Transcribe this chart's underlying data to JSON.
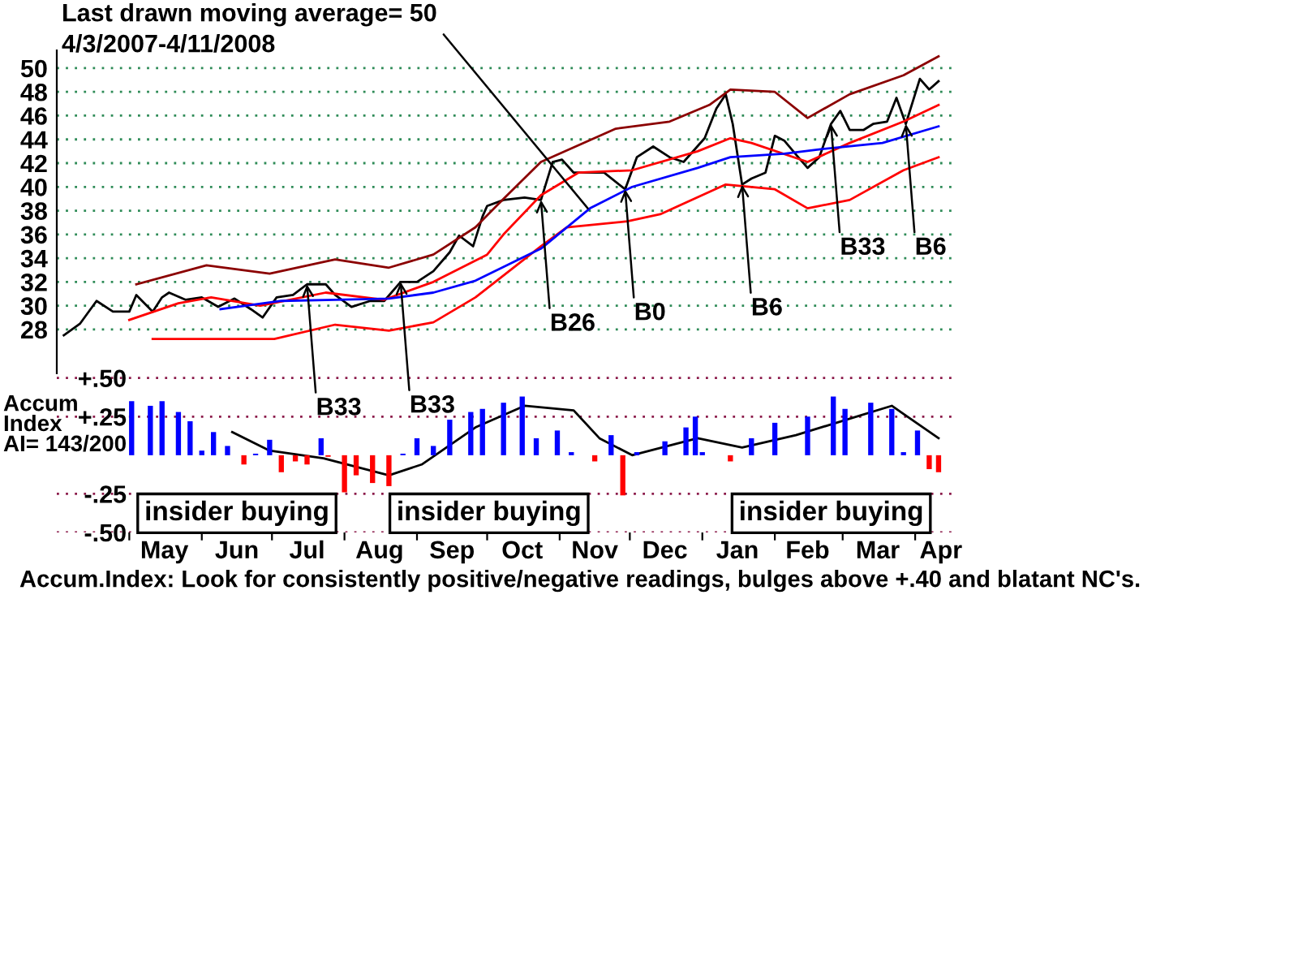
{
  "chart_data": [
    {
      "type": "line",
      "subtitle": "4/3/2007-4/11/2008",
      "xlim": [
        "2007-03-31",
        "2008-04-19"
      ],
      "ylim": [
        24.3,
        51.5
      ],
      "yticks": [
        28,
        30,
        32,
        34,
        36,
        38,
        40,
        42,
        44,
        46,
        48,
        50
      ],
      "grid": "y",
      "tick_labels": "y",
      "series": [
        {
          "color": "#000000",
          "x": [
            "2007-04-03",
            "2007-04-10",
            "2007-04-17",
            "2007-04-24",
            "2007-05-01",
            "2007-05-04",
            "2007-05-11",
            "2007-05-15",
            "2007-05-18",
            "2007-05-25",
            "2007-06-01",
            "2007-06-08",
            "2007-06-15",
            "2007-06-22",
            "2007-06-27",
            "2007-07-03",
            "2007-07-10",
            "2007-07-16",
            "2007-07-24",
            "2007-07-28",
            "2007-08-04",
            "2007-08-12",
            "2007-08-18",
            "2007-08-25",
            "2007-09-01",
            "2007-09-08",
            "2007-09-15",
            "2007-09-19",
            "2007-09-25",
            "2007-09-29",
            "2007-10-01",
            "2007-10-08",
            "2007-10-17",
            "2007-10-24",
            "2007-10-29",
            "2007-11-02",
            "2007-11-07",
            "2007-11-14",
            "2007-11-20",
            "2007-11-29",
            "2007-12-04",
            "2007-12-11",
            "2007-12-18",
            "2007-12-24",
            "2008-01-02",
            "2008-01-07",
            "2008-01-11",
            "2008-01-14",
            "2008-01-18",
            "2008-01-22",
            "2008-01-28",
            "2008-02-01",
            "2008-02-05",
            "2008-02-11",
            "2008-02-15",
            "2008-02-20",
            "2008-02-25",
            "2008-02-29",
            "2008-03-04",
            "2008-03-10",
            "2008-03-14",
            "2008-03-20",
            "2008-03-24",
            "2008-03-28",
            "2008-04-03",
            "2008-04-07",
            "2008-04-11"
          ],
          "values": [
            27.5,
            28.5,
            30.4,
            29.5,
            29.5,
            30.9,
            29.5,
            30.7,
            31.1,
            30.5,
            30.7,
            29.9,
            30.6,
            29.7,
            29.0,
            30.7,
            30.9,
            31.8,
            31.8,
            30.9,
            29.9,
            30.4,
            30.4,
            32.0,
            32.0,
            32.9,
            34.5,
            35.9,
            35.0,
            37.5,
            38.4,
            38.9,
            39.1,
            38.9,
            42.1,
            42.3,
            41.2,
            41.2,
            41.2,
            39.8,
            42.5,
            43.4,
            42.5,
            42.1,
            44.1,
            46.6,
            47.8,
            45.3,
            40.2,
            40.7,
            41.2,
            44.3,
            43.9,
            42.5,
            41.6,
            42.5,
            45.3,
            46.4,
            44.8,
            44.8,
            45.3,
            45.5,
            47.5,
            45.3,
            49.1,
            48.2,
            48.9
          ]
        },
        {
          "color": "#8b0000",
          "x": [
            "2007-05-04",
            "2007-06-03",
            "2007-06-30",
            "2007-07-28",
            "2007-08-20",
            "2007-09-08",
            "2007-09-26",
            "2007-10-08",
            "2007-10-24",
            "2007-11-25",
            "2007-12-18",
            "2008-01-04",
            "2008-01-13",
            "2008-02-01",
            "2008-02-15",
            "2008-03-04",
            "2008-03-27",
            "2008-04-11"
          ],
          "values": [
            31.8,
            33.4,
            32.7,
            33.9,
            33.2,
            34.3,
            36.6,
            39.0,
            42.1,
            44.9,
            45.5,
            46.9,
            48.2,
            48.0,
            45.8,
            47.8,
            49.4,
            51.0
          ]
        },
        {
          "color": "#ff0000",
          "x": [
            "2007-05-11",
            "2007-07-02",
            "2007-07-28",
            "2007-08-20",
            "2007-09-08",
            "2007-09-26",
            "2007-10-24",
            "2007-11-04",
            "2007-11-30",
            "2007-12-14",
            "2008-01-11",
            "2008-02-01",
            "2008-02-15",
            "2008-03-04",
            "2008-03-27",
            "2008-04-11"
          ],
          "values": [
            27.2,
            27.2,
            28.4,
            27.9,
            28.6,
            30.7,
            35.0,
            36.6,
            37.1,
            37.7,
            40.2,
            39.8,
            38.2,
            38.9,
            41.4,
            42.5
          ]
        },
        {
          "color": "#ff0000",
          "x": [
            "2007-05-01",
            "2007-05-22",
            "2007-06-05",
            "2007-06-26",
            "2007-07-24",
            "2007-08-18",
            "2007-09-08",
            "2007-10-01",
            "2007-10-08",
            "2007-10-24",
            "2007-11-09",
            "2007-12-02",
            "2007-12-30",
            "2008-01-13",
            "2008-01-22",
            "2008-02-15",
            "2008-03-04",
            "2008-03-27",
            "2008-04-11"
          ],
          "values": [
            28.8,
            30.2,
            30.7,
            30.0,
            31.1,
            30.5,
            32.0,
            34.3,
            36.0,
            39.3,
            41.2,
            41.4,
            43.0,
            44.1,
            43.7,
            42.1,
            43.7,
            45.5,
            46.9
          ]
        },
        {
          "color": "#0000ff",
          "x": [
            "2007-06-09",
            "2007-07-05",
            "2007-07-28",
            "2007-08-20",
            "2007-09-08",
            "2007-09-26",
            "2007-10-24",
            "2007-11-14",
            "2007-12-02",
            "2007-12-30",
            "2008-01-13",
            "2008-02-05",
            "2008-02-22",
            "2008-03-18",
            "2008-04-11"
          ],
          "values": [
            29.7,
            30.4,
            30.5,
            30.6,
            31.1,
            32.1,
            34.8,
            38.2,
            40.0,
            41.6,
            42.5,
            42.8,
            43.2,
            43.7,
            45.1
          ]
        }
      ],
      "annotations": [
        {
          "text": "Last drawn moving average= 50",
          "x": "2007-11-13",
          "y": 38.2
        },
        {
          "text": "B33",
          "x": "2007-07-16",
          "y": 31.8
        },
        {
          "text": "B33",
          "x": "2007-08-25",
          "y": 32.0
        },
        {
          "text": "B26",
          "x": "2007-10-24",
          "y": 38.9
        },
        {
          "text": "B0",
          "x": "2007-11-29",
          "y": 39.8
        },
        {
          "text": "B6",
          "x": "2008-01-18",
          "y": 40.2
        },
        {
          "text": "B33",
          "x": "2008-02-25",
          "y": 45.3
        },
        {
          "text": "B6",
          "x": "2008-03-28",
          "y": 45.3
        }
      ]
    },
    {
      "type": "bar",
      "ylabel": "Accum\nIndex\nAI= 143/200",
      "xlim": [
        "2007-03-31",
        "2008-04-19"
      ],
      "ylim": [
        -0.5,
        0.53
      ],
      "xticks": [
        {
          "value": "2007-05-01",
          "label": null
        },
        {
          "value": "2007-05-16",
          "label": "May"
        },
        {
          "value": "2007-06-01",
          "label": null
        },
        {
          "value": "2007-06-16",
          "label": "Jun"
        },
        {
          "value": "2007-07-01",
          "label": null
        },
        {
          "value": "2007-07-16",
          "label": "Jul"
        },
        {
          "value": "2007-08-01",
          "label": null
        },
        {
          "value": "2007-08-16",
          "label": "Aug"
        },
        {
          "value": "2007-09-01",
          "label": null
        },
        {
          "value": "2007-09-16",
          "label": "Sep"
        },
        {
          "value": "2007-10-01",
          "label": null
        },
        {
          "value": "2007-10-16",
          "label": "Oct"
        },
        {
          "value": "2007-11-01",
          "label": null
        },
        {
          "value": "2007-11-16",
          "label": "Nov"
        },
        {
          "value": "2007-12-01",
          "label": null
        },
        {
          "value": "2007-12-16",
          "label": "Dec"
        },
        {
          "value": "2008-01-01",
          "label": null
        },
        {
          "value": "2008-01-16",
          "label": "Jan"
        },
        {
          "value": "2008-02-01",
          "label": null
        },
        {
          "value": "2008-02-15",
          "label": "Feb"
        },
        {
          "value": "2008-03-01",
          "label": null
        },
        {
          "value": "2008-03-16",
          "label": "Mar"
        },
        {
          "value": "2008-04-01",
          "label": null
        },
        {
          "value": "2008-04-12",
          "label": "Apr"
        }
      ],
      "yticks": [
        {
          "value": 0.5,
          "label": "+.50"
        },
        {
          "value": 0.25,
          "label": "+.25"
        },
        {
          "value": -0.25,
          "label": "-.25"
        },
        {
          "value": -0.5,
          "label": "-.50"
        }
      ],
      "grid": "y",
      "series": [
        {
          "type": "bar",
          "x": [
            "2007-05-02",
            "2007-05-10",
            "2007-05-15",
            "2007-05-22",
            "2007-05-27",
            "2007-06-01",
            "2007-06-06",
            "2007-06-12",
            "2007-06-19",
            "2007-06-24",
            "2007-06-30",
            "2007-07-05",
            "2007-07-11",
            "2007-07-16",
            "2007-07-22",
            "2007-07-25",
            "2007-08-01",
            "2007-08-06",
            "2007-08-13",
            "2007-08-20",
            "2007-08-26",
            "2007-09-01",
            "2007-09-08",
            "2007-09-15",
            "2007-09-24",
            "2007-09-29",
            "2007-10-08",
            "2007-10-16",
            "2007-10-22",
            "2007-10-31",
            "2007-11-06",
            "2007-11-16",
            "2007-11-23",
            "2007-11-28",
            "2007-12-04",
            "2007-12-16",
            "2007-12-25",
            "2007-12-29",
            "2008-01-01",
            "2008-01-13",
            "2008-01-22",
            "2008-02-01",
            "2008-02-15",
            "2008-02-26",
            "2008-03-02",
            "2008-03-13",
            "2008-03-22",
            "2008-03-27",
            "2008-04-02",
            "2008-04-07",
            "2008-04-11"
          ],
          "values": [
            0.35,
            0.32,
            0.35,
            0.28,
            0.22,
            0.03,
            0.15,
            0.06,
            -0.06,
            0.01,
            0.1,
            -0.11,
            -0.04,
            -0.06,
            0.11,
            -0.01,
            -0.24,
            -0.13,
            -0.18,
            -0.2,
            0.01,
            0.11,
            0.06,
            0.23,
            0.28,
            0.3,
            0.34,
            0.38,
            0.11,
            0.16,
            0.02,
            -0.04,
            0.13,
            -0.26,
            0.02,
            0.09,
            0.18,
            0.25,
            0.02,
            -0.04,
            0.11,
            0.21,
            0.25,
            0.38,
            0.3,
            0.34,
            0.3,
            0.02,
            0.16,
            -0.09,
            -0.11
          ],
          "colors": [
            "#0000ff",
            "#0000ff",
            "#0000ff",
            "#0000ff",
            "#0000ff",
            "#0000ff",
            "#0000ff",
            "#0000ff",
            "#ff0000",
            "#0000ff",
            "#0000ff",
            "#ff0000",
            "#ff0000",
            "#ff0000",
            "#0000ff",
            "#ff0000",
            "#ff0000",
            "#ff0000",
            "#ff0000",
            "#ff0000",
            "#0000ff",
            "#0000ff",
            "#0000ff",
            "#0000ff",
            "#0000ff",
            "#0000ff",
            "#0000ff",
            "#0000ff",
            "#0000ff",
            "#0000ff",
            "#0000ff",
            "#ff0000",
            "#0000ff",
            "#ff0000",
            "#0000ff",
            "#0000ff",
            "#0000ff",
            "#0000ff",
            "#0000ff",
            "#ff0000",
            "#0000ff",
            "#0000ff",
            "#0000ff",
            "#0000ff",
            "#0000ff",
            "#0000ff",
            "#0000ff",
            "#0000ff",
            "#0000ff",
            "#ff0000",
            "#ff0000"
          ]
        },
        {
          "type": "line",
          "color": "#000000",
          "x": [
            "2007-06-14",
            "2007-06-30",
            "2007-07-23",
            "2007-08-20",
            "2007-09-03",
            "2007-09-26",
            "2007-10-17",
            "2007-11-07",
            "2007-11-18",
            "2007-12-02",
            "2007-12-30",
            "2008-01-18",
            "2008-02-10",
            "2008-03-22",
            "2008-04-11"
          ],
          "values": [
            0.15,
            0.03,
            -0.02,
            -0.13,
            -0.06,
            0.18,
            0.32,
            0.29,
            0.11,
            0.0,
            0.11,
            0.05,
            0.13,
            0.32,
            0.11
          ]
        }
      ],
      "annotations": [
        "insider buying",
        "insider buying",
        "insider buying",
        "Accum.Index: Look for consistently positive/negative readings, bulges above +.40 and blatant NC's."
      ]
    }
  ]
}
